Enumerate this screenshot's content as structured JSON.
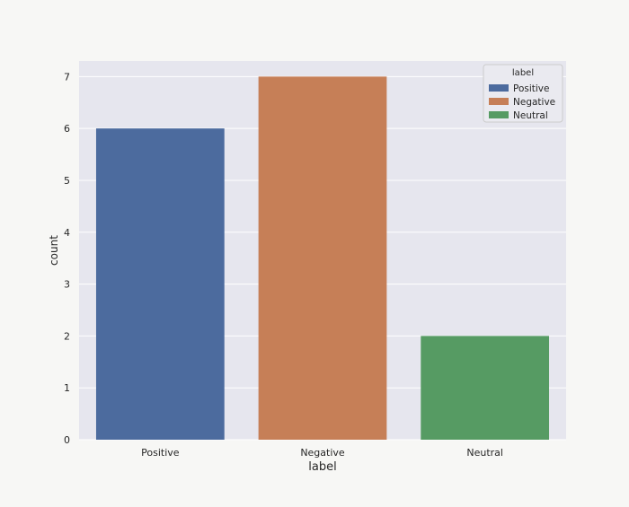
{
  "chart_data": {
    "type": "bar",
    "title": "",
    "xlabel": "label",
    "ylabel": "count",
    "categories": [
      "Positive",
      "Negative",
      "Neutral"
    ],
    "values": [
      6,
      7,
      2
    ],
    "colors": [
      "#4c6b9e",
      "#c67f57",
      "#569b63"
    ],
    "ylim": [
      0,
      7.3
    ],
    "yticks": [
      0,
      1,
      2,
      3,
      4,
      5,
      6,
      7
    ],
    "grid": true,
    "legend": {
      "title": "label",
      "placement": "top-right",
      "entries": [
        "Positive",
        "Negative",
        "Neutral"
      ]
    },
    "theme": {
      "plot_background": "#e6e6ee",
      "grid_color": "#ffffff",
      "page_background": "#f7f7f5"
    }
  }
}
